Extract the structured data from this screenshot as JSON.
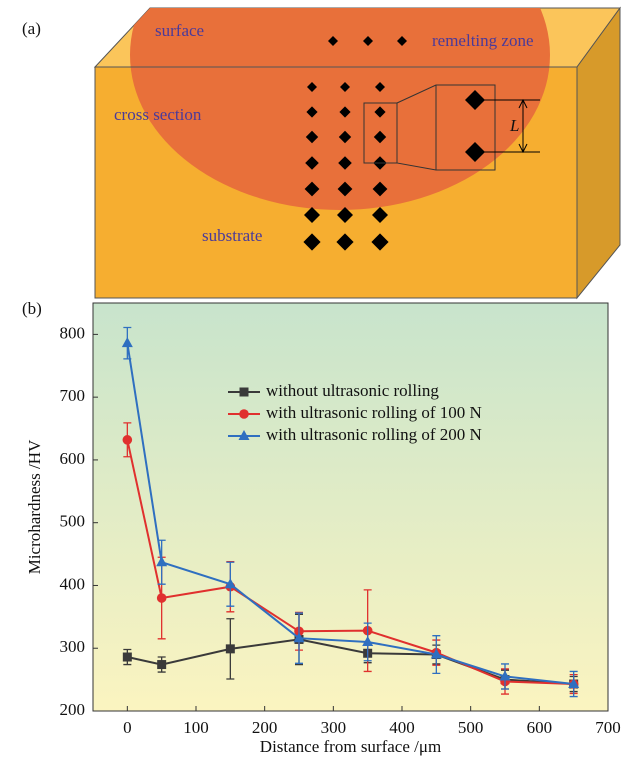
{
  "panel_labels": [
    "(a)",
    "(b)"
  ],
  "diagram": {
    "surface": "surface",
    "remelting_zone": "remelting zone",
    "cross_section": "cross section",
    "substrate": "substrate",
    "spacing": "L"
  },
  "chart_data": {
    "type": "line",
    "x_label": "Distance from surface /μm",
    "y_label": "Microhardness /HV",
    "x": [
      0,
      50,
      150,
      250,
      350,
      450,
      550,
      650
    ],
    "series": [
      {
        "name": "without ultrasonic rolling",
        "color": "#3a3a3a",
        "marker": "square",
        "values": [
          286,
          274,
          299,
          314,
          292,
          290,
          250,
          243
        ],
        "errors": [
          12,
          12,
          48,
          40,
          15,
          15,
          15,
          12
        ]
      },
      {
        "name": "with ultrasonic rolling of 100 N",
        "color": "#e0302e",
        "marker": "circle",
        "values": [
          632,
          380,
          398,
          327,
          328,
          293,
          247,
          243
        ],
        "errors": [
          27,
          65,
          40,
          30,
          65,
          20,
          20,
          15
        ]
      },
      {
        "name": "with ultrasonic rolling of 200 N",
        "color": "#2f6fc0",
        "marker": "triangle",
        "values": [
          786,
          437,
          402,
          316,
          310,
          290,
          255,
          243
        ],
        "errors": [
          25,
          35,
          35,
          40,
          30,
          30,
          20,
          20
        ]
      }
    ],
    "xlim": [
      -50,
      700
    ],
    "xticks": [
      0,
      100,
      200,
      300,
      400,
      500,
      600,
      700
    ],
    "ylim": [
      200,
      850
    ],
    "yticks": [
      200,
      300,
      400,
      500,
      600,
      700,
      800
    ],
    "legend": "upper center",
    "grid": false
  }
}
